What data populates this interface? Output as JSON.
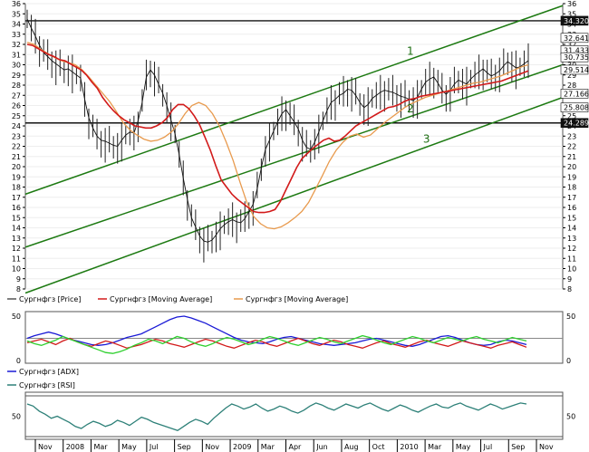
{
  "chart_data": [
    {
      "type": "candlestick",
      "panel": "price",
      "ylim": [
        8,
        36
      ],
      "y_ticks": [
        8,
        9,
        10,
        11,
        12,
        13,
        14,
        15,
        16,
        17,
        18,
        19,
        20,
        21,
        22,
        23,
        24,
        25,
        26,
        27,
        28,
        29,
        30,
        31,
        32,
        33,
        34,
        35,
        36
      ],
      "grid": "off",
      "x_ticks": [
        "Nov",
        "2008",
        "Mar",
        "May",
        "Jul",
        "Sep",
        "Nov",
        "2009",
        "Mar",
        "Apr",
        "Jun",
        "Aug",
        "Oct",
        "2010",
        "Mar",
        "May",
        "Jul",
        "Sep",
        "Nov"
      ],
      "price_labels": [
        "34.3208",
        "32.6414",
        "31.4330",
        "30.7351",
        "29.5149",
        "27.1663",
        "25.8081",
        "24.2897"
      ],
      "channel_labels": [
        "1",
        "2",
        "3"
      ],
      "horizontal_levels": [
        34.3208,
        24.2897
      ],
      "channels": [
        {
          "label": "1",
          "x": [
            0,
            1
          ],
          "y": [
            17.3,
            35.8
          ]
        },
        {
          "label": "2",
          "x": [
            0,
            1
          ],
          "y": [
            12.1,
            30.0
          ]
        },
        {
          "label": "3",
          "x": [
            0,
            1
          ],
          "y": [
            7.6,
            26.8
          ]
        }
      ],
      "series": [
        {
          "name": "Сургнфгз [Price]",
          "color": "#000000",
          "values": [
            34.5,
            33.6,
            32.8,
            31.9,
            31.2,
            30.8,
            30.4,
            30.1,
            29.8,
            29.5,
            29.6,
            29.3,
            29.0,
            28.7,
            26.6,
            24.8,
            23.8,
            23.0,
            22.6,
            22.5,
            22.3,
            22.1,
            22.0,
            22.6,
            23.1,
            23.4,
            23.3,
            24.5,
            26.3,
            28.8,
            29.5,
            29.0,
            28.1,
            27.2,
            26.0,
            24.6,
            23.2,
            21.2,
            18.9,
            16.8,
            15.0,
            14.1,
            13.2,
            12.7,
            12.6,
            12.8,
            13.3,
            13.9,
            14.3,
            14.6,
            14.8,
            14.6,
            14.5,
            14.9,
            15.6,
            16.3,
            17.8,
            19.9,
            21.7,
            22.6,
            23.5,
            24.4,
            25.2,
            25.6,
            25.0,
            24.4,
            23.7,
            22.6,
            21.9,
            21.7,
            22.4,
            23.4,
            24.5,
            25.5,
            26.3,
            26.6,
            27.0,
            27.2,
            27.6,
            27.5,
            27.0,
            26.3,
            25.8,
            26.1,
            26.7,
            27.0,
            27.3,
            27.5,
            27.4,
            27.3,
            27.1,
            26.9,
            26.8,
            26.6,
            26.5,
            26.8,
            27.6,
            28.3,
            28.6,
            28.8,
            28.2,
            27.5,
            27.1,
            27.5,
            28.1,
            28.5,
            28.3,
            28.1,
            28.6,
            29.0,
            29.3,
            29.6,
            29.2,
            28.9,
            29.1,
            29.4,
            29.9,
            30.3,
            30.0,
            29.7,
            29.8,
            30.1,
            30.4
          ]
        },
        {
          "name": "Сургнфгз [Moving Average]",
          "color": "#d21a1a",
          "values": [
            32.0,
            31.9,
            31.6,
            31.3,
            31.0,
            30.8,
            30.5,
            30.4,
            30.1,
            29.8,
            29.5,
            29.0,
            28.3,
            27.7,
            26.8,
            26.1,
            25.5,
            25.0,
            24.6,
            24.3,
            24.0,
            23.9,
            23.8,
            23.8,
            24.0,
            24.3,
            24.8,
            25.6,
            26.1,
            26.1,
            25.7,
            25.0,
            24.1,
            22.9,
            21.6,
            20.1,
            18.7,
            18.0,
            17.3,
            16.8,
            16.4,
            16.0,
            15.6,
            15.5,
            15.5,
            15.6,
            15.8,
            16.6,
            17.7,
            18.8,
            19.9,
            20.8,
            21.3,
            21.8,
            22.2,
            22.6,
            22.8,
            22.5,
            22.6,
            23.0,
            23.5,
            24.0,
            24.3,
            24.6,
            24.9,
            25.2,
            25.5,
            25.8,
            25.9,
            26.1,
            26.4,
            26.6,
            26.7,
            26.9,
            27.0,
            27.1,
            27.2,
            27.3,
            27.4,
            27.5,
            27.6,
            27.7,
            27.8,
            27.9,
            28.0,
            28.1,
            28.2,
            28.3,
            28.4,
            28.6,
            28.8,
            29.0,
            29.2,
            29.4
          ]
        },
        {
          "name": "Сургнфгз [Moving Average]",
          "color": "#e89a4d",
          "values": [
            32.2,
            32.0,
            31.5,
            31.1,
            30.7,
            30.4,
            30.2,
            30.0,
            29.5,
            28.8,
            28.0,
            27.2,
            26.4,
            25.4,
            24.3,
            23.6,
            23.1,
            22.7,
            22.5,
            22.6,
            22.9,
            23.4,
            24.2,
            25.2,
            26.0,
            26.3,
            26.0,
            25.2,
            24.0,
            22.4,
            20.6,
            18.5,
            16.5,
            15.1,
            14.4,
            14.0,
            13.9,
            14.1,
            14.5,
            15.0,
            15.6,
            16.5,
            17.8,
            19.1,
            20.5,
            21.6,
            22.4,
            23.0,
            23.2,
            22.9,
            23.1,
            23.7,
            24.3,
            24.8,
            25.3,
            25.8,
            26.2,
            26.5,
            26.8,
            27.0,
            27.2,
            27.4,
            27.6,
            27.8,
            28.0,
            28.2,
            28.3,
            28.5,
            28.7,
            28.9,
            29.2,
            29.5,
            29.8,
            30.0
          ]
        }
      ],
      "legend": [
        "Сургнфгз [Price]",
        "Сургнфгз [Moving Average]",
        "Сургнфгз [Moving Average]"
      ],
      "legend_position": "bottom"
    },
    {
      "type": "line",
      "panel": "adx",
      "ylim": [
        0,
        50
      ],
      "y_ticks": [
        0,
        50
      ],
      "reference_lines": [
        25
      ],
      "legend": [
        "Сургнфгз [ADX]"
      ],
      "series": [
        {
          "name": "Сургнфгз [ADX]",
          "color": "#1a1ad6",
          "values": [
            25,
            28,
            30,
            32,
            30,
            27,
            24,
            22,
            20,
            18,
            17,
            18,
            20,
            23,
            26,
            28,
            30,
            34,
            38,
            42,
            46,
            49,
            50,
            48,
            45,
            42,
            38,
            34,
            30,
            26,
            23,
            21,
            20,
            19,
            21,
            24,
            26,
            27,
            25,
            23,
            21,
            19,
            18,
            17,
            18,
            19,
            20,
            22,
            24,
            25,
            23,
            21,
            19,
            17,
            16,
            18,
            21,
            24,
            27,
            28,
            26,
            23,
            20,
            18,
            17,
            18,
            21,
            23,
            22,
            20,
            18
          ]
        },
        {
          "name": "",
          "color": "#d21a1a",
          "values": [
            20,
            22,
            24,
            21,
            18,
            22,
            25,
            21,
            18,
            16,
            19,
            22,
            20,
            17,
            14,
            16,
            18,
            21,
            24,
            22,
            19,
            17,
            15,
            18,
            21,
            24,
            22,
            19,
            16,
            14,
            17,
            20,
            23,
            21,
            18,
            16,
            19,
            22,
            25,
            22,
            19,
            17,
            20,
            23,
            21,
            18,
            16,
            14,
            17,
            20,
            22,
            19,
            17,
            15,
            18,
            21,
            23,
            20,
            18,
            16,
            19,
            22,
            20,
            18,
            16,
            14,
            17,
            19,
            21,
            18,
            15
          ]
        },
        {
          "name": "",
          "color": "#2fd02f",
          "values": [
            22,
            19,
            17,
            20,
            23,
            27,
            24,
            21,
            18,
            15,
            12,
            9,
            8,
            10,
            13,
            17,
            20,
            24,
            22,
            19,
            23,
            27,
            25,
            21,
            18,
            16,
            19,
            23,
            26,
            24,
            21,
            18,
            20,
            24,
            27,
            25,
            22,
            19,
            17,
            20,
            23,
            26,
            24,
            21,
            19,
            22,
            25,
            28,
            26,
            23,
            20,
            18,
            21,
            24,
            27,
            25,
            22,
            20,
            23,
            26,
            24,
            22,
            25,
            27,
            24,
            22,
            20,
            23,
            26,
            24,
            22
          ]
        }
      ]
    },
    {
      "type": "line",
      "panel": "rsi",
      "ylim": [
        30,
        70
      ],
      "y_ticks": [
        50
      ],
      "reference_lines": [
        30,
        70
      ],
      "legend": [
        "Сургнфгз [RSI]"
      ],
      "series": [
        {
          "name": "Сургнфгз [RSI]",
          "color": "#2d8078",
          "values": [
            62,
            60,
            55,
            52,
            48,
            50,
            47,
            44,
            40,
            38,
            42,
            45,
            43,
            40,
            42,
            46,
            44,
            41,
            45,
            49,
            47,
            44,
            42,
            40,
            38,
            36,
            40,
            44,
            47,
            45,
            42,
            48,
            53,
            58,
            62,
            60,
            57,
            59,
            62,
            58,
            55,
            57,
            60,
            58,
            55,
            53,
            56,
            60,
            63,
            61,
            58,
            56,
            59,
            62,
            60,
            58,
            61,
            63,
            60,
            57,
            55,
            58,
            61,
            59,
            56,
            54,
            57,
            60,
            62,
            59,
            58,
            61,
            63,
            60,
            58,
            56,
            59,
            62,
            60,
            57,
            59,
            61,
            63,
            62
          ]
        }
      ]
    }
  ]
}
